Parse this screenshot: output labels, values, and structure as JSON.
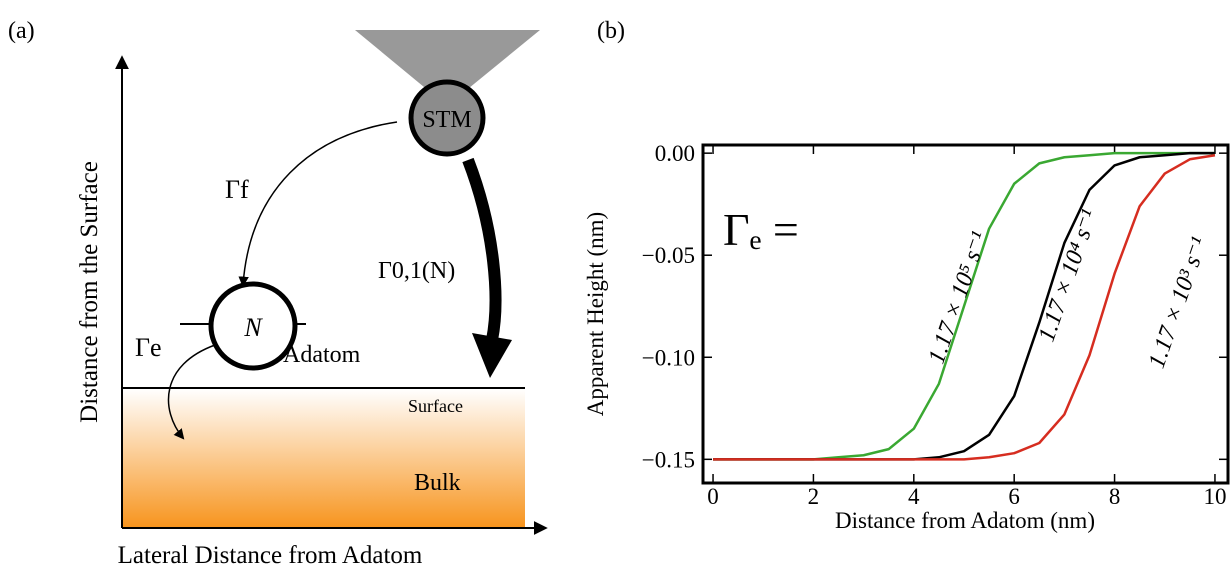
{
  "diagram": {
    "panel_label": "(a)",
    "y_axis_label": "Distance from the Surface",
    "x_axis_label": "Lateral Distance from Adatom",
    "tip_label": "STM",
    "rate_f": "Γf",
    "rate_tunnel": "Γ0,1(N)",
    "adatom_state": "N",
    "rate_e": "Γe",
    "adatom_label": "Adatom",
    "surface_label": "Surface",
    "bulk_label": "Bulk"
  },
  "chart_data": {
    "type": "line",
    "panel_label": "(b)",
    "annotation": "Γₑ =",
    "x_label": "Distance from Adatom (nm)",
    "y_label": "Apparent Height (nm)",
    "x": [
      0,
      0.5,
      1,
      1.5,
      2,
      2.5,
      3,
      3.5,
      4,
      4.5,
      5,
      5.5,
      6,
      6.5,
      7,
      7.5,
      8,
      8.5,
      9,
      9.5,
      10
    ],
    "series": [
      {
        "name": "1.17 × 10⁵ s⁻¹",
        "color": "#3aa832",
        "values": [
          -0.15,
          -0.15,
          -0.15,
          -0.15,
          -0.15,
          -0.149,
          -0.148,
          -0.145,
          -0.135,
          -0.113,
          -0.075,
          -0.037,
          -0.015,
          -0.005,
          -0.002,
          -0.001,
          0,
          0,
          0,
          0,
          0
        ]
      },
      {
        "name": "1.17 × 10⁴ s⁻¹",
        "color": "#000000",
        "values": [
          -0.15,
          -0.15,
          -0.15,
          -0.15,
          -0.15,
          -0.15,
          -0.15,
          -0.15,
          -0.15,
          -0.149,
          -0.146,
          -0.138,
          -0.119,
          -0.083,
          -0.044,
          -0.018,
          -0.006,
          -0.002,
          -0.001,
          0,
          0
        ]
      },
      {
        "name": "1.17 × 10³ s⁻¹",
        "color": "#d62d20",
        "values": [
          -0.15,
          -0.15,
          -0.15,
          -0.15,
          -0.15,
          -0.15,
          -0.15,
          -0.15,
          -0.15,
          -0.15,
          -0.15,
          -0.149,
          -0.147,
          -0.142,
          -0.128,
          -0.099,
          -0.059,
          -0.026,
          -0.01,
          -0.003,
          -0.001
        ]
      }
    ],
    "xlim": [
      -0.2,
      10.26
    ],
    "ylim": [
      -0.1616,
      0.004
    ],
    "xticks": [
      0,
      2,
      4,
      6,
      8,
      10
    ],
    "yticks": [
      {
        "value": 0,
        "label": "0.00"
      },
      {
        "value": -0.05,
        "label": "−0.05"
      },
      {
        "value": -0.1,
        "label": "−0.10"
      },
      {
        "value": -0.15,
        "label": "−0.15"
      }
    ]
  }
}
